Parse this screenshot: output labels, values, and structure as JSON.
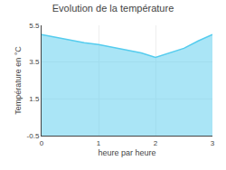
{
  "chart_data": {
    "type": "area",
    "title": "Evolution de la température",
    "xlabel": "heure par heure",
    "ylabel": "Température en °C",
    "x": [
      0,
      0.25,
      0.5,
      0.75,
      1.0,
      1.25,
      1.5,
      1.75,
      2.0,
      2.25,
      2.5,
      2.75,
      3.0
    ],
    "values": [
      5.0,
      4.85,
      4.7,
      4.55,
      4.45,
      4.3,
      4.15,
      4.0,
      3.75,
      4.0,
      4.25,
      4.65,
      5.0
    ],
    "color": "#55ccee",
    "xlim": [
      0,
      3
    ],
    "xticks": [
      0,
      1,
      2,
      3
    ],
    "ylim": [
      -0.5,
      5.5
    ],
    "yticks": [
      -0.5,
      1.5,
      3.5,
      5.5
    ],
    "grid": true
  }
}
